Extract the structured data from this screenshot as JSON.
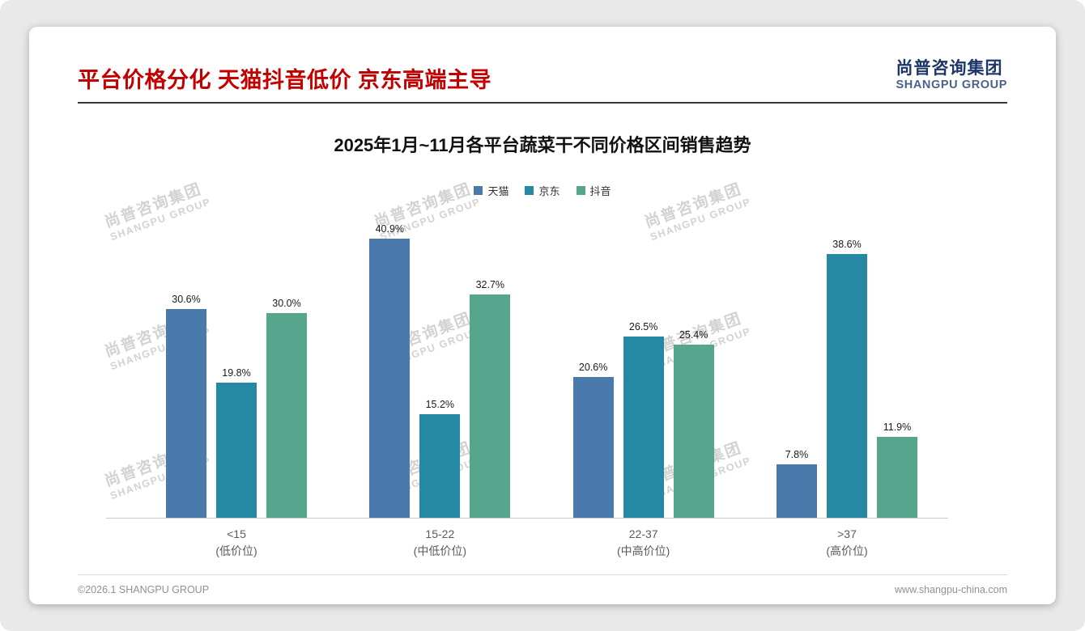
{
  "page": {
    "title": "平台价格分化 天猫抖音低价 京东高端主导",
    "logo": {
      "cn": "尚普咨询集团",
      "en": "SHANGPU GROUP"
    },
    "watermark": {
      "cn": "尚普咨询集团",
      "en": "SHANGPU GROUP"
    },
    "footer": {
      "left": "©2026.1 SHANGPU GROUP",
      "right": "www.shangpu-china.com"
    }
  },
  "chart_data": {
    "type": "bar",
    "title": "2025年1月~11月各平台蔬菜干不同价格区间销售趋势",
    "categories": [
      {
        "label": "<15",
        "sub": "(低价位)"
      },
      {
        "label": "15-22",
        "sub": "(中低价位)"
      },
      {
        "label": "22-37",
        "sub": "(中高价位)"
      },
      {
        "label": ">37",
        "sub": "(高价位)"
      }
    ],
    "series": [
      {
        "name": "天猫",
        "color": "#4a7aab",
        "values": [
          30.6,
          40.9,
          20.6,
          7.8
        ]
      },
      {
        "name": "京东",
        "color": "#2589a4",
        "values": [
          19.8,
          15.2,
          26.5,
          38.6
        ]
      },
      {
        "name": "抖音",
        "color": "#55a68d",
        "values": [
          30.0,
          32.7,
          25.4,
          11.9
        ]
      }
    ],
    "value_suffix": "%",
    "ylim": [
      0,
      45
    ],
    "legend_position": "top",
    "grid": false
  }
}
